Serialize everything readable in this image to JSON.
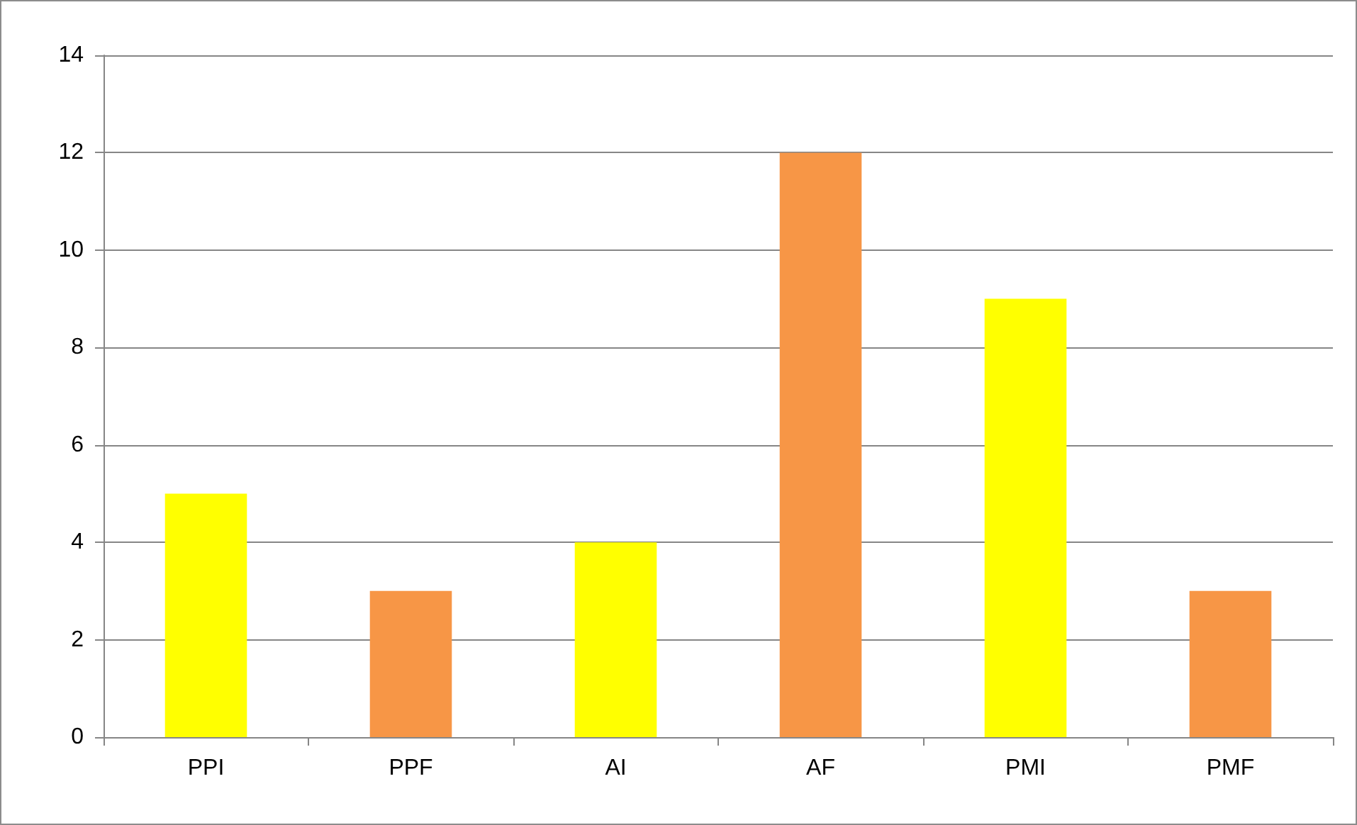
{
  "chart_data": {
    "type": "bar",
    "categories": [
      "PPI",
      "PPF",
      "AI",
      "AF",
      "PMI",
      "PMF"
    ],
    "values": [
      5,
      3,
      4,
      12,
      9,
      3
    ],
    "colors": [
      "#ffff00",
      "#f79646",
      "#ffff00",
      "#f79646",
      "#ffff00",
      "#f79646"
    ],
    "ylim": [
      0,
      14
    ],
    "yticks": [
      0,
      2,
      4,
      6,
      8,
      10,
      12,
      14
    ],
    "grid": "y"
  }
}
